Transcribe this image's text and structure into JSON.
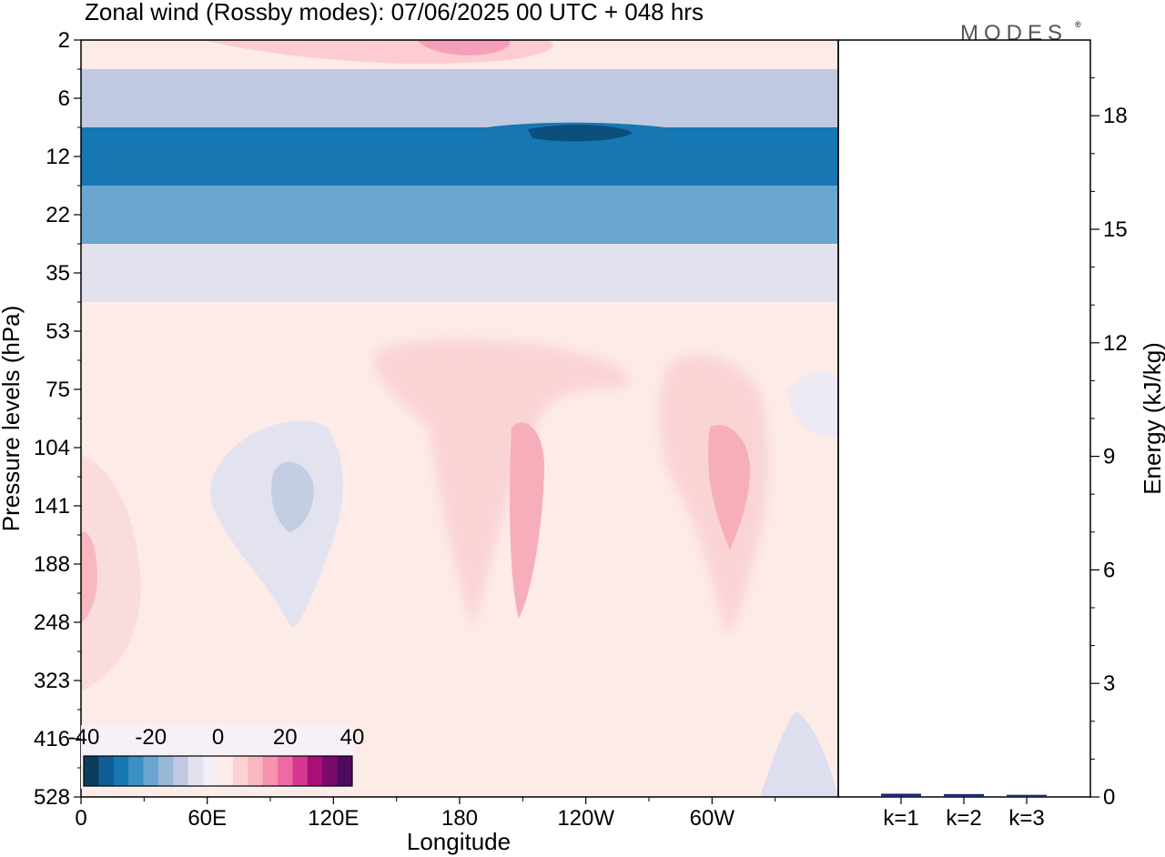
{
  "header": {
    "title": "Zonal wind (Rossby modes):  07/06/2025  00 UTC  + 048 hrs",
    "logo": "MODES"
  },
  "colors": {
    "diverging_scale": [
      "#0b3d5e",
      "#0e5e95",
      "#1677b3",
      "#3a8fc4",
      "#6aa6cf",
      "#98b8d8",
      "#c0c9e2",
      "#e2e2ef",
      "#f3eef5",
      "#fdebe8",
      "#fbd3d4",
      "#f9b7bf",
      "#f593ac",
      "#ee6aa3",
      "#d6388f",
      "#aa0e77",
      "#7a0a6c",
      "#4d0a5f"
    ],
    "frame": "#000000",
    "energy_bar": "#1a2a6c"
  },
  "chart_data": [
    {
      "type": "heatmap",
      "title": "Zonal wind (Rossby modes):  07/06/2025  00 UTC  + 048 hrs",
      "xlabel": "Longitude",
      "ylabel": "Pressure levels (hPa)",
      "x_tick_labels": [
        "0",
        "60E",
        "120E",
        "180",
        "120W",
        "60W"
      ],
      "y_tick_labels": [
        "2",
        "6",
        "12",
        "22",
        "35",
        "53",
        "75",
        "104",
        "141",
        "188",
        "248",
        "323",
        "416",
        "528"
      ],
      "colorbar": {
        "tick_labels": [
          "-40",
          "-20",
          "0",
          "20",
          "40"
        ],
        "range": [
          -40,
          40
        ],
        "step": 5
      },
      "bands": [
        {
          "level": "2",
          "zonal_wind": 4
        },
        {
          "level": "6",
          "zonal_wind": -12
        },
        {
          "level": "12",
          "zonal_wind": -28
        },
        {
          "level": "22",
          "zonal_wind": -20
        },
        {
          "level": "35",
          "zonal_wind": -8
        },
        {
          "level": "53",
          "zonal_wind": 1
        },
        {
          "level": "75",
          "zonal_wind": 3
        },
        {
          "level": "104",
          "zonal_wind": 3
        },
        {
          "level": "141",
          "zonal_wind": 2
        },
        {
          "level": "188",
          "zonal_wind": 2
        },
        {
          "level": "248",
          "zonal_wind": 1
        },
        {
          "level": "323",
          "zonal_wind": 0
        },
        {
          "level": "416",
          "zonal_wind": 0
        },
        {
          "level": "528",
          "zonal_wind": 0
        }
      ]
    },
    {
      "type": "bar",
      "ylabel": "Energy (kJ/kg)",
      "categories": [
        "k=1",
        "k=2",
        "k=3"
      ],
      "values": [
        0.05,
        0.04,
        0.02
      ],
      "ylim": [
        0,
        20
      ],
      "y_tick_labels": [
        "0",
        "3",
        "6",
        "9",
        "12",
        "15",
        "18"
      ]
    }
  ]
}
